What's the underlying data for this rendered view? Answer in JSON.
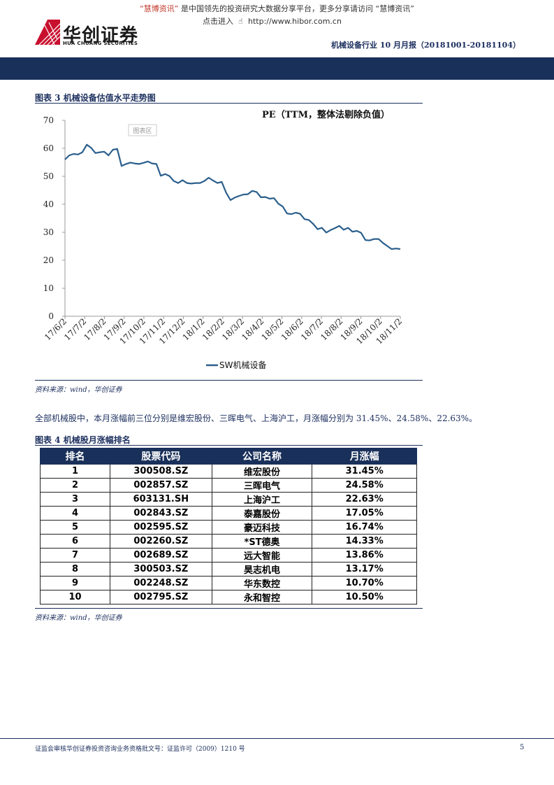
{
  "header": {
    "promo_quote_open": "“",
    "promo_brand": "慧博资讯",
    "promo_quote_close": "”",
    "promo_text": "是中国领先的投资研究大数据分享平台，更多分享请访问",
    "promo_brand2": "“慧博资讯”",
    "click_text": "点击进入",
    "url": "http://www.hibor.com.cn",
    "logo_cn": "华创证券",
    "logo_en": "HUA CHUANG SECURITIES",
    "report_title": "机械设备行业 10 月月报（20181001-20181104）",
    "colors": {
      "brand_red": "#c8102e",
      "navy": "#19305a"
    }
  },
  "figure3": {
    "title": "图表 3   机械设备估值水平走势图",
    "watermark": "图表区",
    "source": "资料来源：wind，华创证券"
  },
  "chart_data": {
    "type": "line",
    "title": "PE（TTM，整体法剔除负值）",
    "xlabel": "",
    "ylabel": "",
    "ylim": [
      0,
      70
    ],
    "yticks": [
      0,
      10,
      20,
      30,
      40,
      50,
      60,
      70
    ],
    "xticks": [
      "17/6/2",
      "17/7/2",
      "17/8/2",
      "17/9/2",
      "17/10/2",
      "17/11/2",
      "17/12/2",
      "18/1/2",
      "18/2/2",
      "18/3/2",
      "18/4/2",
      "18/5/2",
      "18/6/2",
      "18/7/2",
      "18/8/2",
      "18/9/2",
      "18/10/2",
      "18/11/2"
    ],
    "grid": false,
    "legend_position": "bottom",
    "series": [
      {
        "name": "SW机械设备",
        "color": "#2b5f8c",
        "values": [
          56.0,
          57.5,
          58.0,
          57.8,
          58.6,
          61.3,
          60.2,
          58.3,
          58.6,
          58.8,
          57.5,
          59.5,
          59.8,
          53.7,
          54.4,
          54.9,
          54.6,
          54.4,
          54.8,
          55.3,
          54.6,
          54.4,
          50.2,
          50.8,
          50.1,
          48.3,
          47.6,
          48.6,
          47.6,
          47.4,
          47.6,
          47.6,
          48.3,
          49.5,
          48.5,
          47.6,
          48.0,
          44.2,
          41.5,
          42.4,
          43.0,
          43.5,
          43.6,
          44.8,
          44.4,
          42.5,
          42.6,
          42.0,
          42.2,
          40.2,
          39.2,
          36.7,
          36.5,
          37.0,
          36.6,
          34.7,
          34.4,
          33.0,
          31.1,
          31.6,
          29.9,
          30.8,
          31.5,
          32.3,
          30.9,
          31.6,
          30.2,
          30.5,
          29.8,
          27.2,
          27.1,
          27.6,
          27.6,
          26.2,
          25.1,
          24.0,
          24.2,
          24.0
        ]
      }
    ]
  },
  "paragraph": "全部机械股中，本月涨幅前三位分别是维宏股份、三晖电气、上海沪工，月涨幅分别为 31.45%、24.58%、22.63%。",
  "figure4": {
    "title": "图表 4   机械股月涨幅排名",
    "source": "资料来源：wind，华创证券",
    "columns": [
      "排名",
      "股票代码",
      "公司名称",
      "月涨幅"
    ],
    "rows": [
      [
        "1",
        "300508.SZ",
        "维宏股份",
        "31.45%"
      ],
      [
        "2",
        "002857.SZ",
        "三晖电气",
        "24.58%"
      ],
      [
        "3",
        "603131.SH",
        "上海沪工",
        "22.63%"
      ],
      [
        "4",
        "002843.SZ",
        "泰嘉股份",
        "17.05%"
      ],
      [
        "5",
        "002595.SZ",
        "豪迈科技",
        "16.74%"
      ],
      [
        "6",
        "002260.SZ",
        "*ST德奥",
        "14.33%"
      ],
      [
        "7",
        "002689.SZ",
        "远大智能",
        "13.86%"
      ],
      [
        "8",
        "300503.SZ",
        "昊志机电",
        "13.17%"
      ],
      [
        "9",
        "002248.SZ",
        "华东数控",
        "10.70%"
      ],
      [
        "10",
        "002795.SZ",
        "永和智控",
        "10.50%"
      ]
    ]
  },
  "footer": {
    "text": "证监会审核华创证券投资咨询业务资格批文号：证监许可（2009）1210 号",
    "page": "5"
  }
}
